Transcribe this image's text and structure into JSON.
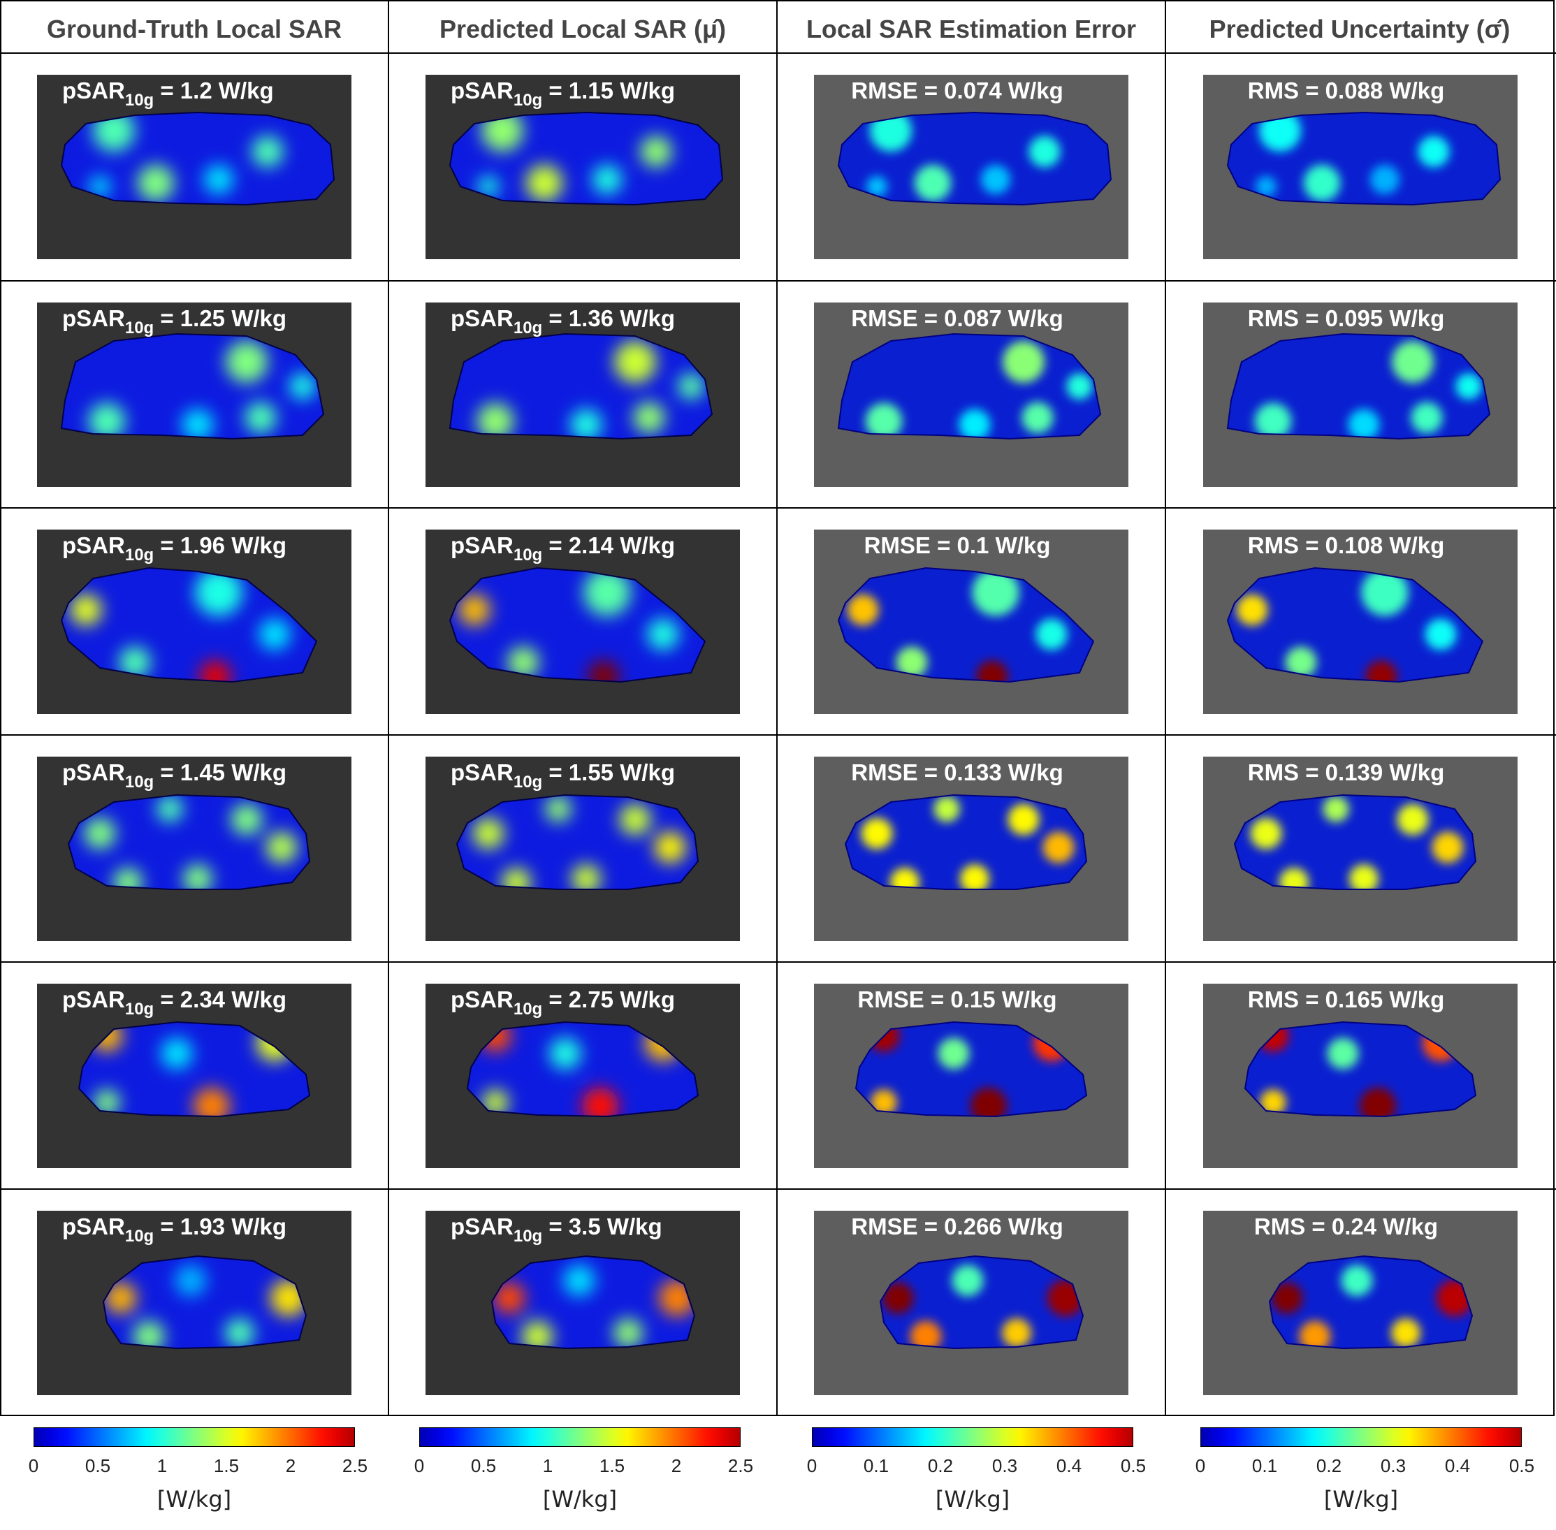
{
  "chart_data": {
    "type": "heatmap",
    "columns": [
      {
        "title": "Ground-Truth Local SAR",
        "unit": "[W/kg]",
        "ticks": [
          "0",
          "0.5",
          "1",
          "1.5",
          "2",
          "2.5"
        ],
        "range": [
          0,
          2.5
        ],
        "colormap": "jet"
      },
      {
        "title": "Predicted Local SAR (μ̂)",
        "unit": "[W/kg]",
        "ticks": [
          "0",
          "0.5",
          "1",
          "1.5",
          "2",
          "2.5"
        ],
        "range": [
          0,
          2.5
        ],
        "colormap": "jet"
      },
      {
        "title": "Local SAR Estimation Error",
        "unit": "[W/kg]",
        "ticks": [
          "0",
          "0.1",
          "0.2",
          "0.3",
          "0.4",
          "0.5"
        ],
        "range": [
          0,
          0.5
        ],
        "colormap": "jet"
      },
      {
        "title": "Predicted Uncertainty (σ̂)",
        "unit": "[W/kg]",
        "ticks": [
          "0",
          "0.1",
          "0.2",
          "0.3",
          "0.4",
          "0.5"
        ],
        "range": [
          0,
          0.5
        ],
        "colormap": "jet"
      }
    ],
    "rows": [
      {
        "gt_psar": "1.2",
        "pred_psar": "1.15",
        "rmse": "0.074",
        "rms": "0.088"
      },
      {
        "gt_psar": "1.25",
        "pred_psar": "1.36",
        "rmse": "0.087",
        "rms": "0.095"
      },
      {
        "gt_psar": "1.96",
        "pred_psar": "2.14",
        "rmse": "0.1",
        "rms": "0.108"
      },
      {
        "gt_psar": "1.45",
        "pred_psar": "1.55",
        "rmse": "0.133",
        "rms": "0.139"
      },
      {
        "gt_psar": "2.34",
        "pred_psar": "2.75",
        "rmse": "0.15",
        "rms": "0.165"
      },
      {
        "gt_psar": "1.93",
        "pred_psar": "3.5",
        "rmse": "0.266",
        "rms": "0.24"
      }
    ],
    "label_prefix": {
      "psar": "pSAR",
      "psar_sub": "10g",
      "rmse": "RMSE = ",
      "rms": "RMS = ",
      "unit_suffix": " W/kg"
    },
    "colors": {
      "dark_bg": "#333333",
      "gray_bg": "#5e5e5e",
      "low": "#00008f",
      "high": "#800000"
    }
  }
}
